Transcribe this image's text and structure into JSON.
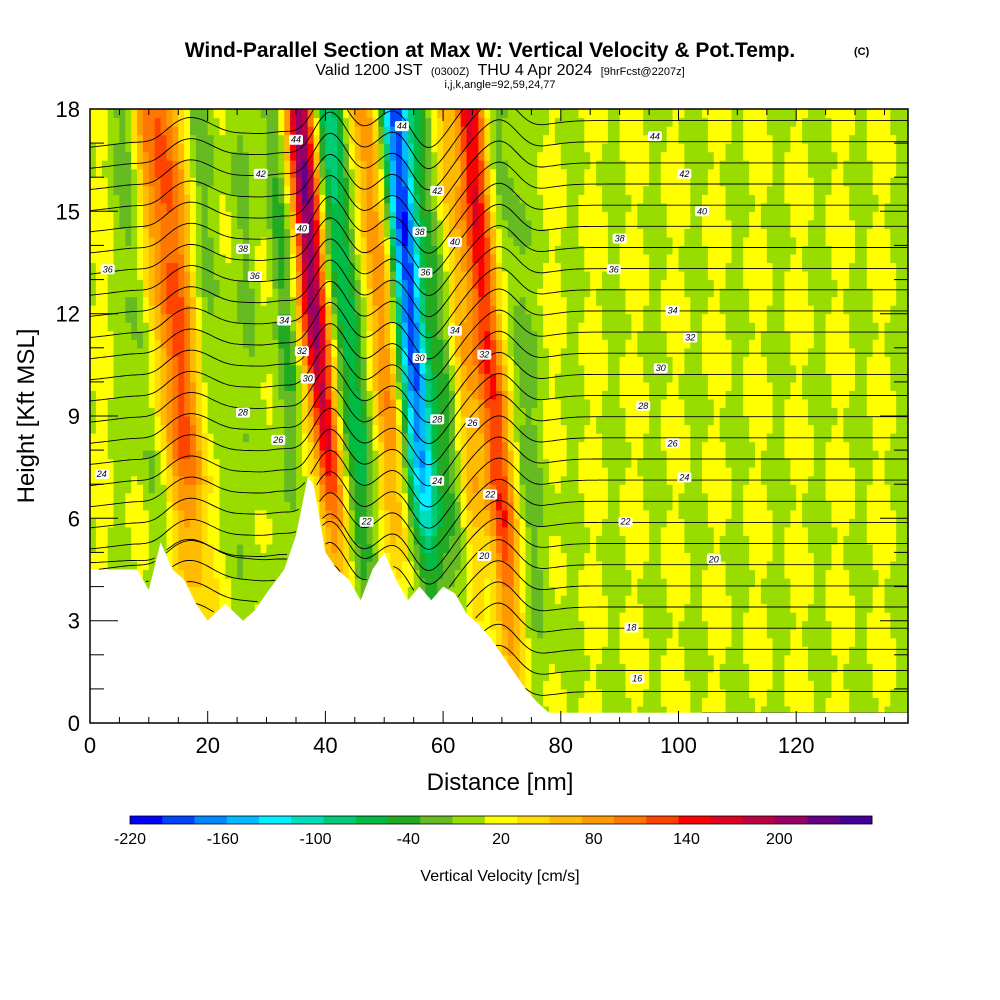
{
  "chart_data": {
    "type": "heatmap",
    "title": "Wind-Parallel Section at Max W: Vertical Velocity & Pot.Temp.",
    "title_suffix": "(C)",
    "subtitle": {
      "valid": "Valid 1200 JST",
      "utc": "(0300Z)",
      "date": "THU 4 Apr 2024",
      "forecast": "[9hrFcst@2207z]"
    },
    "info": "i,j,k,angle=92,59,24,77",
    "xlabel": "Distance [nm]",
    "ylabel": "Height [Kft MSL]",
    "xlim": [
      0,
      139
    ],
    "ylim": [
      0,
      18
    ],
    "x_ticks": [
      "0",
      "20",
      "40",
      "60",
      "80",
      "100",
      "120"
    ],
    "y_ticks": [
      "0",
      "3",
      "6",
      "9",
      "12",
      "15",
      "18"
    ],
    "colorbar": {
      "label": "Vertical Velocity [cm/s]",
      "ticks": [
        "-220",
        "-160",
        "-100",
        "-40",
        "20",
        "80",
        "140",
        "200"
      ],
      "range": [
        -220,
        240
      ],
      "step": 20,
      "colors": [
        "#0000ff",
        "#0044ff",
        "#0088ff",
        "#00bbff",
        "#00eeff",
        "#00ddbb",
        "#00cc77",
        "#00bb44",
        "#22aa22",
        "#66bb22",
        "#99dd00",
        "#ffff00",
        "#ffdd00",
        "#ffbb00",
        "#ff9900",
        "#ff7700",
        "#ff4400",
        "#ff0000",
        "#dd0022",
        "#bb0044",
        "#990066",
        "#660088",
        "#440099"
      ]
    },
    "vertical_velocity_features": [
      {
        "x": 17,
        "w": 4,
        "peak": 110,
        "kind": "updraft"
      },
      {
        "x": 11,
        "w": 2,
        "peak": -35,
        "kind": "downdraft"
      },
      {
        "x": 23,
        "w": 3,
        "peak": -30,
        "kind": "downdraft"
      },
      {
        "x": 30,
        "w": 2,
        "peak": -20,
        "kind": "downdraft"
      },
      {
        "x": 36,
        "w": 2,
        "peak": -45,
        "kind": "downdraft"
      },
      {
        "x": 41,
        "w": 2.5,
        "peak": 200,
        "kind": "updraft"
      },
      {
        "x": 46,
        "w": 3,
        "peak": -90,
        "kind": "downdraft"
      },
      {
        "x": 52,
        "w": 3,
        "peak": 80,
        "kind": "updraft"
      },
      {
        "x": 57,
        "w": 2.5,
        "peak": -200,
        "kind": "downdraft"
      },
      {
        "x": 62,
        "w": 2.5,
        "peak": -55,
        "kind": "downdraft"
      },
      {
        "x": 65,
        "w": 2.5,
        "peak": 60,
        "kind": "updraft"
      },
      {
        "x": 70,
        "w": 2.5,
        "peak": 140,
        "kind": "updraft"
      },
      {
        "x": 75,
        "w": 3,
        "peak": -30,
        "kind": "downdraft"
      }
    ],
    "terrain": [
      [
        0,
        4.5
      ],
      [
        8,
        4.5
      ],
      [
        10,
        3.9
      ],
      [
        12,
        5.3
      ],
      [
        14,
        4.5
      ],
      [
        16,
        4.2
      ],
      [
        18,
        3.5
      ],
      [
        20,
        3.0
      ],
      [
        23,
        3.5
      ],
      [
        26,
        3.0
      ],
      [
        28,
        3.3
      ],
      [
        30,
        3.8
      ],
      [
        33,
        4.5
      ],
      [
        35,
        5.5
      ],
      [
        37,
        7.2
      ],
      [
        38,
        7.0
      ],
      [
        40,
        5.0
      ],
      [
        42,
        4.5
      ],
      [
        44,
        4.2
      ],
      [
        46,
        3.6
      ],
      [
        48,
        4.5
      ],
      [
        50,
        5.0
      ],
      [
        52,
        4.2
      ],
      [
        54,
        3.6
      ],
      [
        56,
        4.0
      ],
      [
        58,
        3.6
      ],
      [
        60,
        4.0
      ],
      [
        62,
        3.8
      ],
      [
        64,
        3.2
      ],
      [
        66,
        2.9
      ],
      [
        68,
        2.5
      ],
      [
        70,
        2.0
      ],
      [
        72,
        1.5
      ],
      [
        74,
        1.0
      ],
      [
        76,
        0.6
      ],
      [
        78,
        0.3
      ],
      [
        80,
        0.3
      ],
      [
        139,
        0.3
      ]
    ],
    "pot_temp_contours": {
      "units": "C",
      "interval": 1,
      "range": [
        16,
        45
      ],
      "labels": [
        {
          "text": "44",
          "x": 35,
          "y": 17.1
        },
        {
          "text": "42",
          "x": 29,
          "y": 16.1
        },
        {
          "text": "40",
          "x": 36,
          "y": 14.5
        },
        {
          "text": "38",
          "x": 26,
          "y": 13.9
        },
        {
          "text": "36",
          "x": 28,
          "y": 13.1
        },
        {
          "text": "36",
          "x": 3,
          "y": 13.3
        },
        {
          "text": "34",
          "x": 33,
          "y": 11.8
        },
        {
          "text": "32",
          "x": 36,
          "y": 10.9
        },
        {
          "text": "30",
          "x": 37,
          "y": 10.1
        },
        {
          "text": "28",
          "x": 26,
          "y": 9.1
        },
        {
          "text": "26",
          "x": 32,
          "y": 8.3
        },
        {
          "text": "24",
          "x": 2,
          "y": 7.3
        },
        {
          "text": "44",
          "x": 53,
          "y": 17.5
        },
        {
          "text": "42",
          "x": 59,
          "y": 15.6
        },
        {
          "text": "38",
          "x": 56,
          "y": 14.4
        },
        {
          "text": "40",
          "x": 62,
          "y": 14.1
        },
        {
          "text": "36",
          "x": 57,
          "y": 13.2
        },
        {
          "text": "34",
          "x": 62,
          "y": 11.5
        },
        {
          "text": "32",
          "x": 67,
          "y": 10.8
        },
        {
          "text": "30",
          "x": 56,
          "y": 10.7
        },
        {
          "text": "28",
          "x": 59,
          "y": 8.9
        },
        {
          "text": "26",
          "x": 65,
          "y": 8.8
        },
        {
          "text": "24",
          "x": 59,
          "y": 7.1
        },
        {
          "text": "22",
          "x": 68,
          "y": 6.7
        },
        {
          "text": "22",
          "x": 47,
          "y": 5.9
        },
        {
          "text": "20",
          "x": 67,
          "y": 4.9
        },
        {
          "text": "44",
          "x": 96,
          "y": 17.2
        },
        {
          "text": "42",
          "x": 101,
          "y": 16.1
        },
        {
          "text": "40",
          "x": 104,
          "y": 15.0
        },
        {
          "text": "38",
          "x": 90,
          "y": 14.2
        },
        {
          "text": "36",
          "x": 89,
          "y": 13.3
        },
        {
          "text": "34",
          "x": 99,
          "y": 12.1
        },
        {
          "text": "32",
          "x": 102,
          "y": 11.3
        },
        {
          "text": "30",
          "x": 97,
          "y": 10.4
        },
        {
          "text": "28",
          "x": 94,
          "y": 9.3
        },
        {
          "text": "26",
          "x": 99,
          "y": 8.2
        },
        {
          "text": "24",
          "x": 101,
          "y": 7.2
        },
        {
          "text": "22",
          "x": 91,
          "y": 5.9
        },
        {
          "text": "20",
          "x": 106,
          "y": 4.8
        },
        {
          "text": "18",
          "x": 92,
          "y": 2.8
        },
        {
          "text": "16",
          "x": 93,
          "y": 1.3
        }
      ]
    },
    "grid": false
  }
}
